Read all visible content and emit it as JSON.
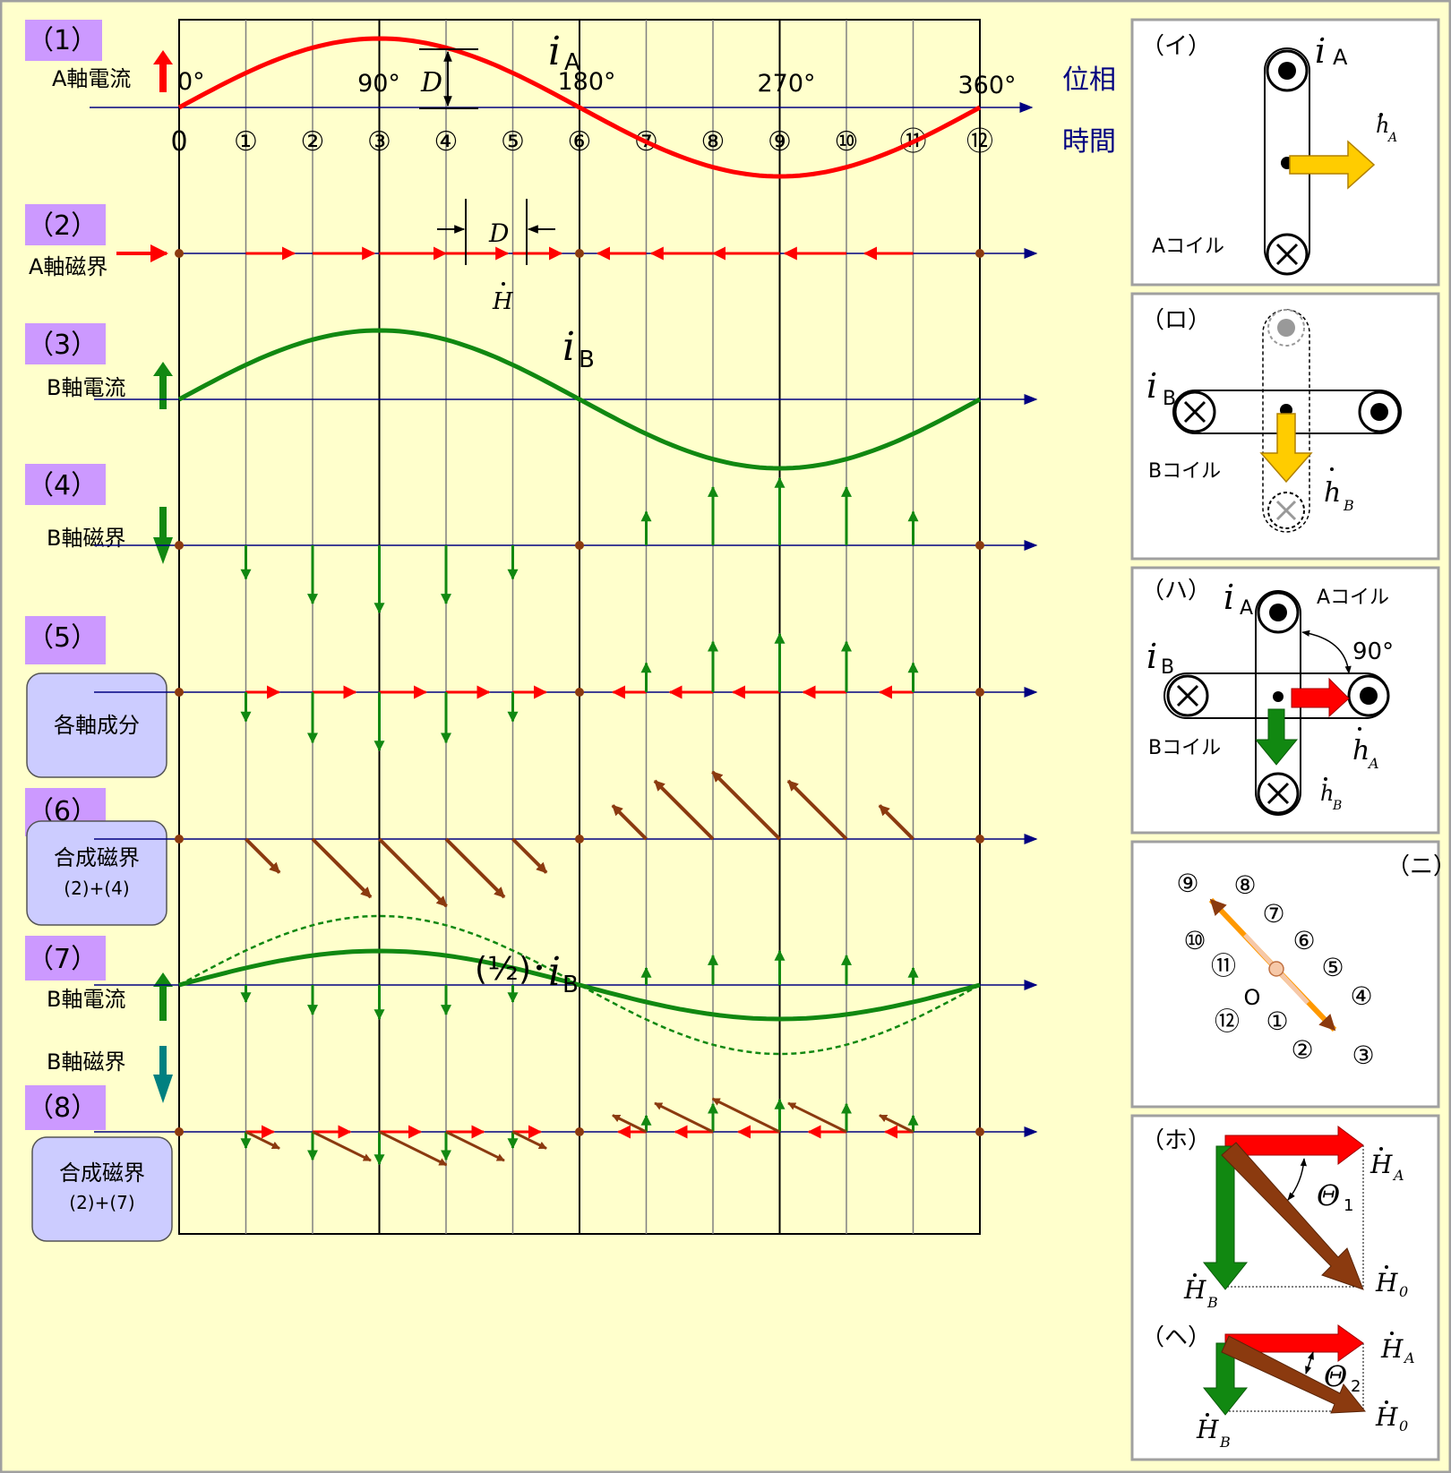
{
  "colors": {
    "background": "#ffffcc",
    "frame": "#a0a0a0",
    "grid": "#000000",
    "grid_thin": "#808080",
    "axis": "#000080",
    "current_a": "#ff0000",
    "current_b": "#118811",
    "field_a": "#ff0000",
    "field_b": "#118811",
    "resultant": "#8b3a0f",
    "label_bg": "#cc99ff",
    "box_bg": "#ccccff",
    "yellow_arrow": "#ffcc00",
    "teal_arrow": "#008080"
  },
  "rows": {
    "r1": {
      "num": "（1）",
      "label": "A軸電流",
      "icon": "up-arrow-icon"
    },
    "r2": {
      "num": "（2）",
      "label": "A軸磁界",
      "icon": "right-arrow-icon"
    },
    "r3": {
      "num": "（3）",
      "label": "B軸電流",
      "icon": "up-arrow-icon"
    },
    "r4": {
      "num": "（4）",
      "label": "B軸磁界",
      "icon": "down-arrow-icon"
    },
    "r5": {
      "num": "（5）",
      "box": "各軸成分"
    },
    "r6": {
      "num": "（6）",
      "box": "合成磁界",
      "box2": "(2)+(4)"
    },
    "r7": {
      "num": "（7）",
      "label": "B軸電流",
      "label2": "B軸磁界"
    },
    "r8": {
      "num": "（8）",
      "box": "合成磁界",
      "box2": "(2)+(7)"
    }
  },
  "phase_labels": [
    "0°",
    "90°",
    "180°",
    "270°",
    "360°"
  ],
  "phase_axis_label": "位相",
  "time_axis_label": "時間",
  "time_labels": [
    "0",
    "①",
    "②",
    "③",
    "④",
    "⑤",
    "⑥",
    "⑦",
    "⑧",
    "⑨",
    "⑩",
    "⑪",
    "⑫"
  ],
  "curve_labels": {
    "iA": "i",
    "iA_sub": "A",
    "iB": "i",
    "iB_sub": "B",
    "D": "D",
    "H": "H",
    "half": "(½)･",
    "half_i": "i",
    "half_sub": "B"
  },
  "panels": {
    "i": {
      "title": "（イ）",
      "i": "i",
      "i_sub": "A",
      "h": "h",
      "h_sub": "A",
      "coil": "Aコイル"
    },
    "ro": {
      "title": "（ロ）",
      "i": "i",
      "i_sub": "B",
      "h": "h",
      "h_sub": "B",
      "coil": "Bコイル"
    },
    "ha": {
      "title": "（ハ）",
      "iA": "i",
      "iA_sub": "A",
      "iB": "i",
      "iB_sub": "B",
      "coilA": "Aコイル",
      "coilB": "Bコイル",
      "angle": "90°",
      "hA": "h",
      "hA_sub": "A",
      "hB": "h",
      "hB_sub": "B"
    },
    "ni": {
      "title": "（ニ）",
      "origin": "O",
      "labels": [
        "①",
        "②",
        "③",
        "④",
        "⑤",
        "⑥",
        "⑦",
        "⑧",
        "⑨",
        "⑩",
        "⑪",
        "⑫"
      ]
    },
    "ho": {
      "title": "（ホ）",
      "HA": "H",
      "HA_sub": "A",
      "HB": "H",
      "HB_sub": "B",
      "H0": "H",
      "H0_sub": "0",
      "theta": "Θ",
      "theta_sub": "1"
    },
    "he": {
      "title": "（ヘ）",
      "HA": "H",
      "HA_sub": "A",
      "HB": "H",
      "HB_sub": "B",
      "H0": "H",
      "H0_sub": "0",
      "theta": "Θ",
      "theta_sub": "2"
    }
  },
  "chart_data": {
    "type": "line",
    "phase_deg": [
      0,
      30,
      60,
      90,
      120,
      150,
      180,
      210,
      240,
      270,
      300,
      330,
      360
    ],
    "series": [
      {
        "name": "iA",
        "values": [
          0,
          0.5,
          0.866,
          1,
          0.866,
          0.5,
          0,
          -0.5,
          -0.866,
          -1,
          -0.866,
          -0.5,
          0
        ]
      },
      {
        "name": "iB",
        "values": [
          0,
          0.5,
          0.866,
          1,
          0.866,
          0.5,
          0,
          -0.5,
          -0.866,
          -1,
          -0.866,
          -0.5,
          0
        ]
      }
    ]
  }
}
